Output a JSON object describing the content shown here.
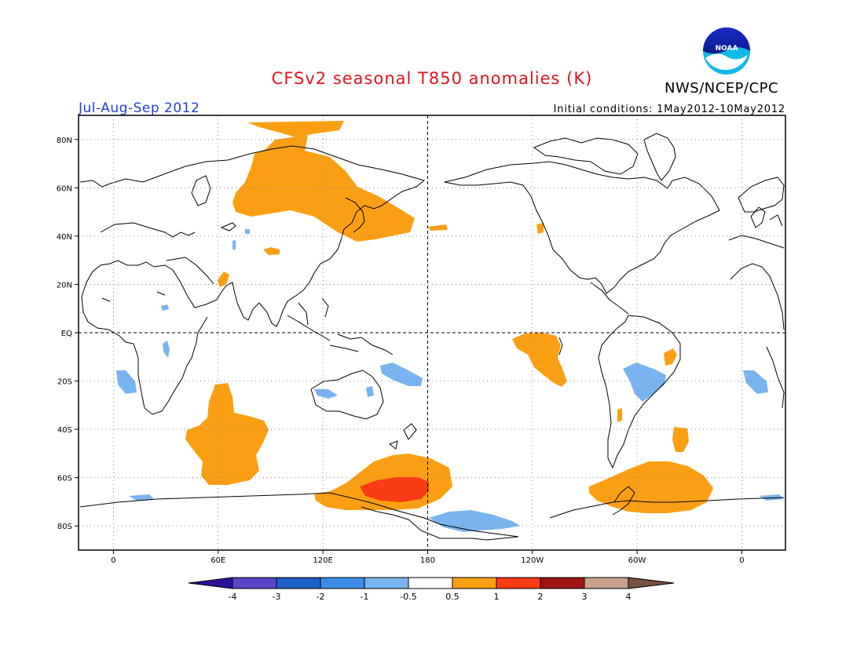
{
  "title": "CFSv2 seasonal T850 anomalies (K)",
  "agency": "NWS/NCEP/CPC",
  "period": "Jul-Aug-Sep 2012",
  "initial_conditions": "Initial conditions: 1May2012-10May2012",
  "logo_text": "NOAA",
  "map": {
    "lat_labels": [
      "80N",
      "60N",
      "40N",
      "20N",
      "EQ",
      "20S",
      "40S",
      "60S",
      "80S"
    ],
    "lat_values": [
      80,
      60,
      40,
      20,
      0,
      -20,
      -40,
      -60,
      -80
    ],
    "lon_labels": [
      "0",
      "60E",
      "120E",
      "180",
      "120W",
      "60W",
      "0"
    ],
    "lon_values": [
      0,
      60,
      120,
      180,
      240,
      300,
      360
    ],
    "lon_range": [
      -20,
      385
    ],
    "lat_range": [
      -90,
      90
    ]
  },
  "colorbar": {
    "labels": [
      "-4",
      "-3",
      "-2",
      "-1",
      "-0.5",
      "0.5",
      "1",
      "2",
      "3",
      "4"
    ],
    "colors": [
      "#2d0f9a",
      "#5a47c8",
      "#1e60c8",
      "#3c8ce6",
      "#78b4f0",
      "#ffffff",
      "#fa9f14",
      "#fa3c14",
      "#a01414",
      "#c8a08c",
      "#7a5040"
    ]
  },
  "colors": {
    "warm1": "#fa9f14",
    "warm2": "#fa3c14",
    "cool1": "#78b4f0",
    "title": "#e0141e",
    "period": "#1f3fe0"
  }
}
